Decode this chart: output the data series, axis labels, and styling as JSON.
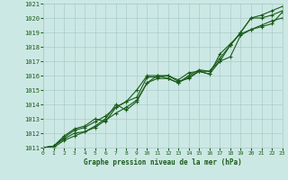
{
  "xlabel": "Graphe pression niveau de la mer (hPa)",
  "ylim": [
    1011,
    1021
  ],
  "xlim": [
    0,
    23
  ],
  "yticks": [
    1011,
    1012,
    1013,
    1014,
    1015,
    1016,
    1017,
    1018,
    1019,
    1020,
    1021
  ],
  "xticks": [
    0,
    1,
    2,
    3,
    4,
    5,
    6,
    7,
    8,
    9,
    10,
    11,
    12,
    13,
    14,
    15,
    16,
    17,
    18,
    19,
    20,
    21,
    22,
    23
  ],
  "bg_color": "#cce8e4",
  "grid_color": "#aacccc",
  "line_color": "#1a5c1a",
  "series": [
    [
      1011.0,
      1011.1,
      1011.6,
      1012.0,
      1012.1,
      1012.5,
      1013.0,
      1014.0,
      1013.6,
      1014.2,
      1015.5,
      1016.0,
      1016.0,
      1015.7,
      1016.2,
      1016.3,
      1016.3,
      1017.0,
      1018.1,
      1019.0,
      1020.0,
      1020.2,
      1020.5,
      1020.8
    ],
    [
      1011.0,
      1011.1,
      1011.7,
      1012.2,
      1012.4,
      1012.8,
      1013.2,
      1013.8,
      1014.2,
      1015.0,
      1016.0,
      1016.0,
      1015.8,
      1015.5,
      1016.0,
      1016.4,
      1016.3,
      1017.2,
      1018.1,
      1019.0,
      1020.0,
      1020.0,
      1020.2,
      1020.5
    ],
    [
      1011.0,
      1011.1,
      1011.8,
      1012.3,
      1012.5,
      1013.0,
      1012.8,
      1013.8,
      1014.2,
      1014.5,
      1015.9,
      1015.9,
      1016.0,
      1015.6,
      1015.8,
      1016.3,
      1016.1,
      1017.5,
      1018.2,
      1018.9,
      1019.2,
      1019.4,
      1019.6,
      1020.4
    ],
    [
      1011.0,
      1011.0,
      1011.5,
      1011.8,
      1012.1,
      1012.4,
      1012.9,
      1013.4,
      1013.8,
      1014.3,
      1015.5,
      1015.8,
      1015.8,
      1015.5,
      1015.9,
      1016.3,
      1016.1,
      1017.0,
      1017.3,
      1018.8,
      1019.2,
      1019.5,
      1019.8,
      1020.0
    ]
  ]
}
